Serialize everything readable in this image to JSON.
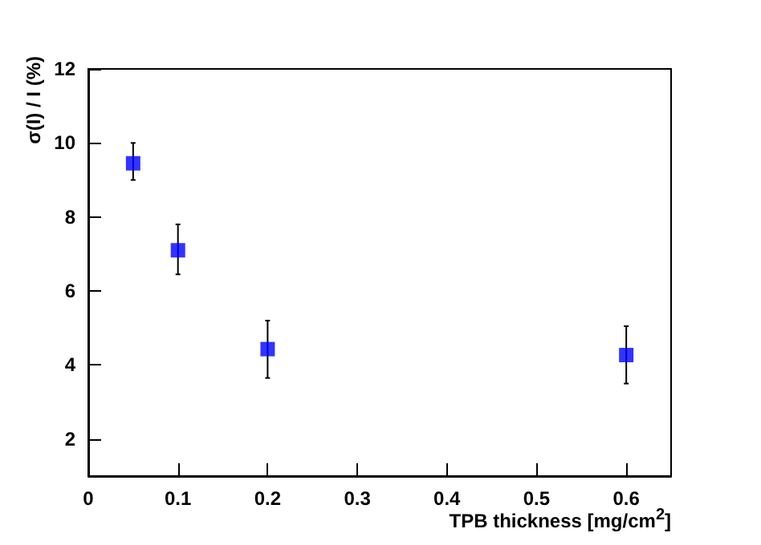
{
  "chart_data": {
    "type": "scatter",
    "xlabel": "TPB thickness [mg/cm$^{2}$]",
    "ylabel": "σ(I) / I  (%)",
    "x": [
      0.05,
      0.1,
      0.2,
      0.6
    ],
    "series": [
      {
        "color": "#0000ff",
        "values": [
          9.45,
          7.1,
          4.43,
          4.27
        ],
        "errors": [
          [
            9.0,
            10.0
          ],
          [
            6.45,
            7.8
          ],
          [
            3.65,
            5.2
          ],
          [
            3.5,
            5.05
          ]
        ]
      }
    ],
    "xlim": [
      0,
      0.65
    ],
    "xticks": [
      0,
      0.1,
      0.2,
      0.3,
      0.4,
      0.5,
      0.6
    ],
    "ylim": [
      1,
      12
    ],
    "yticks": [
      2,
      4,
      6,
      8,
      10,
      12
    ],
    "grid": false,
    "marker": "square"
  }
}
